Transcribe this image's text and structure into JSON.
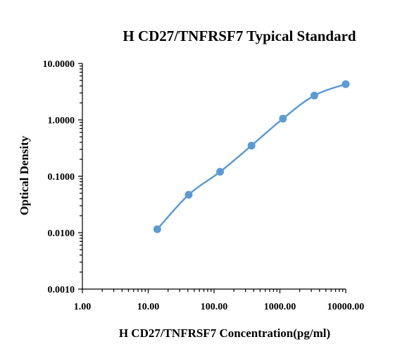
{
  "chart_data": {
    "type": "scatter",
    "title": "H CD27/TNFRSF7 Typical Standard",
    "xlabel": "H CD27/TNFRSF7 Concentration(pg/ml)",
    "ylabel": "Optical Density",
    "x_scale": "log",
    "y_scale": "log",
    "xlim": [
      1,
      10000
    ],
    "ylim": [
      0.001,
      10
    ],
    "x_ticks": [
      "1.00",
      "10.00",
      "100.00",
      "1000.00",
      "10000.00"
    ],
    "y_ticks": [
      "0.0010",
      "0.0100",
      "0.1000",
      "1.0000",
      "10.0000"
    ],
    "grid": false,
    "legend": "none",
    "color": "#5b9bd5",
    "series": [
      {
        "x": [
          13.72,
          41.15,
          123.5,
          370.4,
          1111,
          3333,
          10000
        ],
        "y": [
          0.0115,
          0.047,
          0.12,
          0.35,
          1.05,
          2.7,
          4.3
        ]
      }
    ]
  }
}
